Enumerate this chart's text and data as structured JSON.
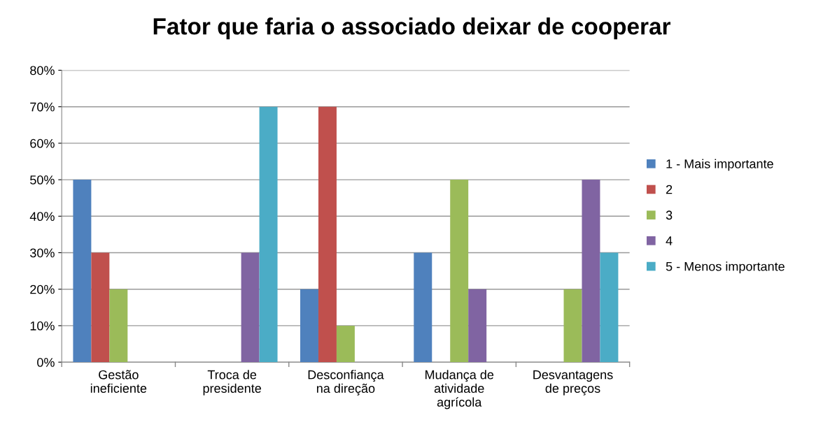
{
  "chart_data": {
    "type": "bar",
    "title": "Fator que faria o associado deixar de cooperar",
    "categories": [
      "Gestão ineficiente",
      "Troca de presidente",
      "Desconfiança na direção",
      "Mudança de atividade agrícola",
      "Desvantagens de preços"
    ],
    "series": [
      {
        "name": "1 - Mais importante",
        "color": "#4f81bd",
        "values": [
          50,
          0,
          20,
          30,
          0
        ]
      },
      {
        "name": "2",
        "color": "#c0504d",
        "values": [
          30,
          0,
          70,
          0,
          0
        ]
      },
      {
        "name": "3",
        "color": "#9bbb59",
        "values": [
          20,
          0,
          10,
          50,
          20
        ]
      },
      {
        "name": "4",
        "color": "#8064a2",
        "values": [
          0,
          30,
          0,
          20,
          50
        ]
      },
      {
        "name": "5 - Menos importante",
        "color": "#4bacc6",
        "values": [
          0,
          70,
          0,
          0,
          30
        ]
      }
    ],
    "ylim": [
      0,
      80
    ],
    "yticks": [
      {
        "value": 0,
        "label": "0%"
      },
      {
        "value": 10,
        "label": "10%"
      },
      {
        "value": 20,
        "label": "20%"
      },
      {
        "value": 30,
        "label": "30%"
      },
      {
        "value": 40,
        "label": "40%"
      },
      {
        "value": 50,
        "label": "50%"
      },
      {
        "value": 60,
        "label": "60%"
      },
      {
        "value": 70,
        "label": "70%"
      },
      {
        "value": 80,
        "label": "80%"
      }
    ],
    "grid": "y",
    "legend": "right"
  }
}
